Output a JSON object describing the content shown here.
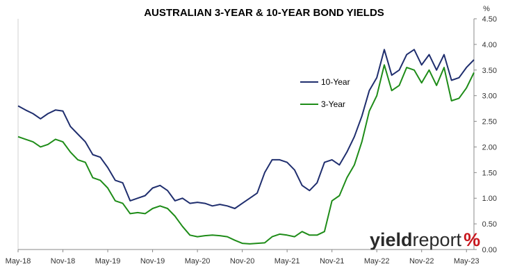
{
  "chart_data": {
    "type": "line",
    "title": "AUSTRALIAN 3-YEAR & 10-YEAR BOND YIELDS",
    "y_unit_label": "%",
    "ylim": [
      0,
      4.5
    ],
    "y_ticks": [
      "0.00",
      "0.50",
      "1.00",
      "1.50",
      "2.00",
      "2.50",
      "3.00",
      "3.50",
      "4.00",
      "4.50"
    ],
    "x_ticks": [
      "May-18",
      "Nov-18",
      "May-19",
      "Nov-19",
      "May-20",
      "Nov-20",
      "May-21",
      "Nov-21",
      "May-22",
      "Nov-22",
      "May-23"
    ],
    "xlim": [
      "2018-05",
      "2023-06"
    ],
    "grid": false,
    "legend_position": "center",
    "series": [
      {
        "name": "10-Year",
        "color": "#1f2e6e",
        "points": [
          [
            "2018-05",
            2.8
          ],
          [
            "2018-06",
            2.72
          ],
          [
            "2018-07",
            2.65
          ],
          [
            "2018-08",
            2.55
          ],
          [
            "2018-09",
            2.65
          ],
          [
            "2018-10",
            2.72
          ],
          [
            "2018-11",
            2.7
          ],
          [
            "2018-12",
            2.4
          ],
          [
            "2019-01",
            2.25
          ],
          [
            "2019-02",
            2.1
          ],
          [
            "2019-03",
            1.85
          ],
          [
            "2019-04",
            1.8
          ],
          [
            "2019-05",
            1.6
          ],
          [
            "2019-06",
            1.35
          ],
          [
            "2019-07",
            1.3
          ],
          [
            "2019-08",
            0.95
          ],
          [
            "2019-09",
            1.0
          ],
          [
            "2019-10",
            1.05
          ],
          [
            "2019-11",
            1.2
          ],
          [
            "2019-12",
            1.25
          ],
          [
            "2020-01",
            1.15
          ],
          [
            "2020-02",
            0.95
          ],
          [
            "2020-03",
            1.0
          ],
          [
            "2020-04",
            0.9
          ],
          [
            "2020-05",
            0.92
          ],
          [
            "2020-06",
            0.9
          ],
          [
            "2020-07",
            0.85
          ],
          [
            "2020-08",
            0.88
          ],
          [
            "2020-09",
            0.85
          ],
          [
            "2020-10",
            0.8
          ],
          [
            "2020-11",
            0.9
          ],
          [
            "2020-12",
            1.0
          ],
          [
            "2021-01",
            1.1
          ],
          [
            "2021-02",
            1.5
          ],
          [
            "2021-03",
            1.75
          ],
          [
            "2021-04",
            1.75
          ],
          [
            "2021-05",
            1.7
          ],
          [
            "2021-06",
            1.55
          ],
          [
            "2021-07",
            1.25
          ],
          [
            "2021-08",
            1.15
          ],
          [
            "2021-09",
            1.3
          ],
          [
            "2021-10",
            1.7
          ],
          [
            "2021-11",
            1.75
          ],
          [
            "2021-12",
            1.65
          ],
          [
            "2022-01",
            1.9
          ],
          [
            "2022-02",
            2.2
          ],
          [
            "2022-03",
            2.6
          ],
          [
            "2022-04",
            3.1
          ],
          [
            "2022-05",
            3.35
          ],
          [
            "2022-06",
            3.9
          ],
          [
            "2022-07",
            3.4
          ],
          [
            "2022-08",
            3.5
          ],
          [
            "2022-09",
            3.8
          ],
          [
            "2022-10",
            3.9
          ],
          [
            "2022-11",
            3.6
          ],
          [
            "2022-12",
            3.8
          ],
          [
            "2023-01",
            3.5
          ],
          [
            "2023-02",
            3.8
          ],
          [
            "2023-03",
            3.3
          ],
          [
            "2023-04",
            3.35
          ],
          [
            "2023-05",
            3.55
          ],
          [
            "2023-06",
            3.7
          ]
        ]
      },
      {
        "name": "3-Year",
        "color": "#1e8c18",
        "points": [
          [
            "2018-05",
            2.2
          ],
          [
            "2018-06",
            2.15
          ],
          [
            "2018-07",
            2.1
          ],
          [
            "2018-08",
            2.0
          ],
          [
            "2018-09",
            2.05
          ],
          [
            "2018-10",
            2.15
          ],
          [
            "2018-11",
            2.1
          ],
          [
            "2018-12",
            1.9
          ],
          [
            "2019-01",
            1.75
          ],
          [
            "2019-02",
            1.7
          ],
          [
            "2019-03",
            1.4
          ],
          [
            "2019-04",
            1.35
          ],
          [
            "2019-05",
            1.2
          ],
          [
            "2019-06",
            0.95
          ],
          [
            "2019-07",
            0.9
          ],
          [
            "2019-08",
            0.7
          ],
          [
            "2019-09",
            0.72
          ],
          [
            "2019-10",
            0.7
          ],
          [
            "2019-11",
            0.8
          ],
          [
            "2019-12",
            0.85
          ],
          [
            "2020-01",
            0.8
          ],
          [
            "2020-02",
            0.65
          ],
          [
            "2020-03",
            0.45
          ],
          [
            "2020-04",
            0.28
          ],
          [
            "2020-05",
            0.25
          ],
          [
            "2020-06",
            0.27
          ],
          [
            "2020-07",
            0.28
          ],
          [
            "2020-08",
            0.27
          ],
          [
            "2020-09",
            0.25
          ],
          [
            "2020-10",
            0.18
          ],
          [
            "2020-11",
            0.12
          ],
          [
            "2020-12",
            0.11
          ],
          [
            "2021-01",
            0.12
          ],
          [
            "2021-02",
            0.13
          ],
          [
            "2021-03",
            0.25
          ],
          [
            "2021-04",
            0.3
          ],
          [
            "2021-05",
            0.28
          ],
          [
            "2021-06",
            0.25
          ],
          [
            "2021-07",
            0.35
          ],
          [
            "2021-08",
            0.28
          ],
          [
            "2021-09",
            0.28
          ],
          [
            "2021-10",
            0.35
          ],
          [
            "2021-11",
            0.95
          ],
          [
            "2021-12",
            1.05
          ],
          [
            "2022-01",
            1.4
          ],
          [
            "2022-02",
            1.65
          ],
          [
            "2022-03",
            2.1
          ],
          [
            "2022-04",
            2.7
          ],
          [
            "2022-05",
            3.0
          ],
          [
            "2022-06",
            3.6
          ],
          [
            "2022-07",
            3.1
          ],
          [
            "2022-08",
            3.2
          ],
          [
            "2022-09",
            3.55
          ],
          [
            "2022-10",
            3.5
          ],
          [
            "2022-11",
            3.25
          ],
          [
            "2022-12",
            3.5
          ],
          [
            "2023-01",
            3.2
          ],
          [
            "2023-02",
            3.55
          ],
          [
            "2023-03",
            2.9
          ],
          [
            "2023-04",
            2.95
          ],
          [
            "2023-05",
            3.15
          ],
          [
            "2023-06",
            3.45
          ]
        ]
      }
    ]
  },
  "watermark": {
    "text_bold": "yield",
    "text_light": "report",
    "symbol": "%",
    "symbol_color": "#c8161d"
  }
}
